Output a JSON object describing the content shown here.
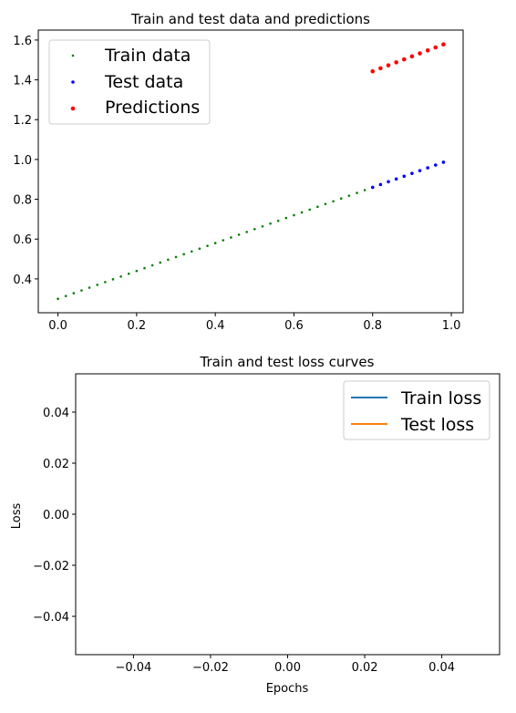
{
  "chart_data": [
    {
      "type": "scatter",
      "title": "Train and test data and predictions",
      "xlabel": "",
      "ylabel": "",
      "xlim": [
        -0.05,
        1.03
      ],
      "ylim": [
        0.23,
        1.65
      ],
      "xticks": [
        "0.0",
        "0.2",
        "0.4",
        "0.6",
        "0.8",
        "1.0"
      ],
      "xtick_values": [
        0.0,
        0.2,
        0.4,
        0.6,
        0.8,
        1.0
      ],
      "yticks": [
        "0.4",
        "0.6",
        "0.8",
        "1.0",
        "1.2",
        "1.4",
        "1.6"
      ],
      "ytick_values": [
        0.4,
        0.6,
        0.8,
        1.0,
        1.2,
        1.4,
        1.6
      ],
      "grid": false,
      "legend_position": "top-left",
      "series": [
        {
          "name": "Train data",
          "color": "#008000",
          "x": [
            0.0,
            0.02,
            0.04,
            0.06,
            0.08,
            0.1,
            0.12,
            0.14,
            0.16,
            0.18,
            0.2,
            0.22,
            0.24,
            0.26,
            0.28,
            0.3,
            0.32,
            0.34,
            0.36,
            0.38,
            0.4,
            0.42,
            0.44,
            0.46,
            0.48,
            0.5,
            0.52,
            0.54,
            0.56,
            0.58,
            0.6,
            0.62,
            0.64,
            0.66,
            0.68,
            0.7,
            0.72,
            0.74,
            0.76,
            0.78
          ],
          "y": [
            0.3,
            0.314,
            0.328,
            0.342,
            0.356,
            0.37,
            0.384,
            0.398,
            0.412,
            0.426,
            0.44,
            0.454,
            0.468,
            0.482,
            0.496,
            0.51,
            0.524,
            0.538,
            0.552,
            0.566,
            0.58,
            0.594,
            0.608,
            0.622,
            0.636,
            0.65,
            0.664,
            0.678,
            0.692,
            0.706,
            0.72,
            0.734,
            0.748,
            0.762,
            0.776,
            0.79,
            0.804,
            0.818,
            0.832,
            0.846
          ]
        },
        {
          "name": "Test data",
          "color": "#0000ff",
          "x": [
            0.8,
            0.82,
            0.84,
            0.86,
            0.88,
            0.9,
            0.92,
            0.94,
            0.96,
            0.98
          ],
          "y": [
            0.86,
            0.874,
            0.888,
            0.902,
            0.916,
            0.93,
            0.944,
            0.958,
            0.972,
            0.986
          ]
        },
        {
          "name": "Predictions",
          "color": "#ff0000",
          "x": [
            0.8,
            0.82,
            0.84,
            0.86,
            0.88,
            0.9,
            0.92,
            0.94,
            0.96,
            0.98
          ],
          "y": [
            1.443,
            1.458,
            1.473,
            1.488,
            1.503,
            1.518,
            1.533,
            1.548,
            1.563,
            1.578
          ]
        }
      ]
    },
    {
      "type": "line",
      "title": "Train and test loss curves",
      "xlabel": "Epochs",
      "ylabel": "Loss",
      "xlim": [
        -0.055,
        0.055
      ],
      "ylim": [
        -0.055,
        0.055
      ],
      "xticks": [
        "−0.04",
        "−0.02",
        "0.00",
        "0.02",
        "0.04"
      ],
      "xtick_values": [
        -0.04,
        -0.02,
        0.0,
        0.02,
        0.04
      ],
      "yticks": [
        "−0.04",
        "−0.02",
        "0.00",
        "0.02",
        "0.04"
      ],
      "ytick_values": [
        -0.04,
        -0.02,
        0.0,
        0.02,
        0.04
      ],
      "grid": false,
      "legend_position": "top-right",
      "series": [
        {
          "name": "Train loss",
          "color": "#1f77b4",
          "x": [],
          "y": []
        },
        {
          "name": "Test loss",
          "color": "#ff7f0e",
          "x": [],
          "y": []
        }
      ]
    }
  ]
}
